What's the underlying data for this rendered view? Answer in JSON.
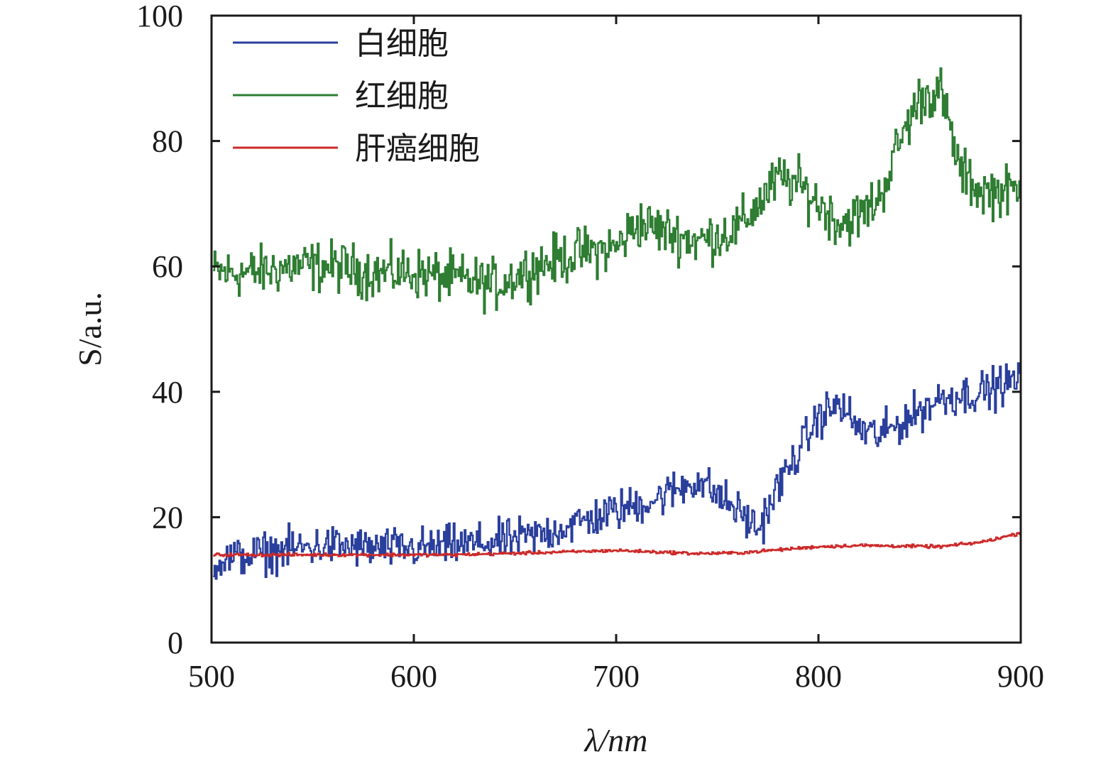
{
  "chart_data": {
    "type": "line",
    "title": "",
    "xlabel": "λ/nm",
    "ylabel": "S/a.u.",
    "xlim": [
      500,
      900
    ],
    "ylim": [
      0,
      100
    ],
    "xticks": [
      500,
      600,
      700,
      800,
      900
    ],
    "yticks": [
      0,
      20,
      40,
      60,
      80,
      100
    ],
    "grid": false,
    "legend_position": "top-left",
    "series": [
      {
        "name": "白细胞",
        "color": "#2a3f9c",
        "noise": 3.2,
        "x": [
          500,
          520,
          540,
          560,
          580,
          600,
          620,
          640,
          660,
          680,
          700,
          720,
          740,
          760,
          770,
          780,
          800,
          810,
          820,
          830,
          840,
          860,
          880,
          900
        ],
        "y": [
          13,
          14,
          15,
          15.5,
          15,
          15,
          15.5,
          16,
          17,
          19,
          21,
          23,
          26,
          21,
          18,
          25,
          36,
          38,
          34,
          33,
          35,
          39,
          40,
          42
        ]
      },
      {
        "name": "红细胞",
        "color": "#2e7d32",
        "noise": 4.0,
        "x": [
          500,
          520,
          540,
          560,
          580,
          600,
          620,
          640,
          660,
          680,
          700,
          710,
          720,
          740,
          760,
          780,
          790,
          800,
          810,
          820,
          830,
          840,
          850,
          860,
          870,
          880,
          900
        ],
        "y": [
          59,
          59,
          60,
          60,
          59,
          59,
          58,
          57,
          60,
          62,
          63,
          67,
          66,
          64,
          66,
          74,
          73,
          70,
          67,
          68,
          71,
          80,
          87,
          88,
          75,
          72,
          72
        ]
      },
      {
        "name": "肝癌细胞",
        "color": "#cc2929",
        "noise": 0.25,
        "x": [
          500,
          560,
          620,
          680,
          700,
          740,
          760,
          780,
          800,
          820,
          840,
          860,
          880,
          900
        ],
        "y": [
          14,
          14,
          14,
          14.5,
          14.7,
          14.2,
          14.3,
          14.8,
          15.3,
          15.5,
          15.4,
          15.3,
          16.0,
          17.5
        ]
      }
    ]
  }
}
